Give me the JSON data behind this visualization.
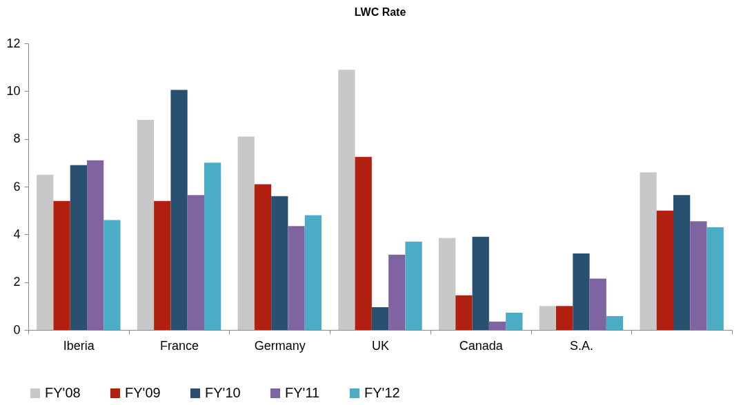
{
  "chart_data": {
    "type": "bar",
    "title": "LWC Rate",
    "categories": [
      "Iberia",
      "France",
      "Germany",
      "UK",
      "Canada",
      "S.A.",
      null
    ],
    "series": [
      {
        "name": "FY'08",
        "color": "#c8c8c8",
        "values": [
          6.5,
          8.8,
          8.1,
          10.9,
          3.85,
          1.0,
          6.6
        ]
      },
      {
        "name": "FY'09",
        "color": "#b22010",
        "values": [
          5.4,
          5.4,
          6.1,
          7.25,
          1.45,
          1.0,
          5.0
        ]
      },
      {
        "name": "FY'10",
        "color": "#2a5070",
        "values": [
          6.9,
          10.05,
          5.6,
          0.95,
          3.9,
          3.2,
          5.65
        ]
      },
      {
        "name": "FY'11",
        "color": "#8064a2",
        "values": [
          7.1,
          5.65,
          4.35,
          3.15,
          0.35,
          2.15,
          4.55
        ]
      },
      {
        "name": "FY'12",
        "color": "#4bacc6",
        "values": [
          4.6,
          7.0,
          4.8,
          3.7,
          0.72,
          0.58,
          4.3
        ]
      }
    ],
    "ylim": [
      0,
      12
    ],
    "yticks": [
      0,
      2,
      4,
      6,
      8,
      10,
      12
    ],
    "legend": "bottom"
  }
}
